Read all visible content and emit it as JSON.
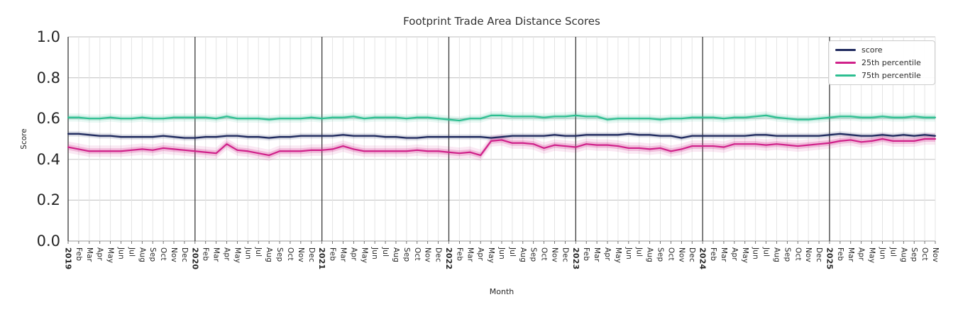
{
  "chart_data": {
    "type": "line",
    "title": "Footprint Trade Area Distance Scores",
    "xlabel": "Month",
    "ylabel": "Score",
    "ylim": [
      0.0,
      1.0
    ],
    "yticks": [
      0.0,
      0.2,
      0.4,
      0.6,
      0.8,
      1.0
    ],
    "grid": "on",
    "legend_position": "upper right",
    "x_labels": [
      "2019",
      "Feb",
      "Mar",
      "Apr",
      "May",
      "Jun",
      "Jul",
      "Aug",
      "Sep",
      "Oct",
      "Nov",
      "Dec",
      "2020",
      "Feb",
      "Mar",
      "Apr",
      "May",
      "Jun",
      "Jul",
      "Aug",
      "Sep",
      "Oct",
      "Nov",
      "Dec",
      "2021",
      "Feb",
      "Mar",
      "Apr",
      "May",
      "Jun",
      "Jul",
      "Aug",
      "Sep",
      "Oct",
      "Nov",
      "Dec",
      "2022",
      "Feb",
      "Mar",
      "Apr",
      "May",
      "Jun",
      "Jul",
      "Aug",
      "Sep",
      "Oct",
      "Nov",
      "Dec",
      "2023",
      "Feb",
      "Mar",
      "Apr",
      "May",
      "Jun",
      "Jul",
      "Aug",
      "Sep",
      "Oct",
      "Nov",
      "Dec",
      "2024",
      "Feb",
      "Mar",
      "Apr",
      "May",
      "Jun",
      "Jul",
      "Aug",
      "Sep",
      "Oct",
      "Nov",
      "Dec",
      "2025",
      "Feb",
      "Mar",
      "Apr",
      "May",
      "Jun",
      "Jul",
      "Aug",
      "Sep",
      "Oct",
      "Nov"
    ],
    "series": [
      {
        "name": "score",
        "color": "#1f2a5e",
        "band": 0.007,
        "values": [
          0.525,
          0.525,
          0.52,
          0.515,
          0.515,
          0.51,
          0.51,
          0.51,
          0.51,
          0.515,
          0.51,
          0.505,
          0.505,
          0.51,
          0.51,
          0.515,
          0.515,
          0.51,
          0.51,
          0.505,
          0.51,
          0.51,
          0.515,
          0.515,
          0.515,
          0.515,
          0.52,
          0.515,
          0.515,
          0.515,
          0.51,
          0.51,
          0.505,
          0.505,
          0.51,
          0.51,
          0.51,
          0.51,
          0.51,
          0.51,
          0.505,
          0.51,
          0.515,
          0.515,
          0.515,
          0.515,
          0.52,
          0.515,
          0.515,
          0.52,
          0.52,
          0.52,
          0.52,
          0.525,
          0.52,
          0.52,
          0.515,
          0.515,
          0.505,
          0.515,
          0.515,
          0.515,
          0.515,
          0.515,
          0.515,
          0.52,
          0.52,
          0.515,
          0.515,
          0.515,
          0.515,
          0.515,
          0.52,
          0.525,
          0.52,
          0.515,
          0.515,
          0.52,
          0.515,
          0.52,
          0.515,
          0.52,
          0.515
        ]
      },
      {
        "name": "25th percentile",
        "color": "#d0218a",
        "band": 0.014,
        "values": [
          0.46,
          0.45,
          0.44,
          0.44,
          0.44,
          0.44,
          0.445,
          0.45,
          0.445,
          0.455,
          0.45,
          0.445,
          0.44,
          0.435,
          0.43,
          0.475,
          0.445,
          0.44,
          0.43,
          0.42,
          0.44,
          0.44,
          0.44,
          0.445,
          0.445,
          0.45,
          0.465,
          0.45,
          0.44,
          0.44,
          0.44,
          0.44,
          0.44,
          0.445,
          0.44,
          0.44,
          0.435,
          0.43,
          0.435,
          0.42,
          0.49,
          0.495,
          0.48,
          0.48,
          0.475,
          0.455,
          0.47,
          0.465,
          0.46,
          0.475,
          0.47,
          0.47,
          0.465,
          0.455,
          0.455,
          0.45,
          0.455,
          0.44,
          0.45,
          0.465,
          0.465,
          0.465,
          0.46,
          0.475,
          0.475,
          0.475,
          0.47,
          0.475,
          0.47,
          0.465,
          0.47,
          0.475,
          0.48,
          0.49,
          0.495,
          0.485,
          0.49,
          0.5,
          0.49,
          0.49,
          0.49,
          0.5,
          0.5
        ]
      },
      {
        "name": "75th percentile",
        "color": "#2cbe90",
        "band": 0.01,
        "values": [
          0.605,
          0.605,
          0.6,
          0.6,
          0.605,
          0.6,
          0.6,
          0.605,
          0.6,
          0.6,
          0.605,
          0.605,
          0.605,
          0.605,
          0.6,
          0.61,
          0.6,
          0.6,
          0.6,
          0.595,
          0.6,
          0.6,
          0.6,
          0.605,
          0.6,
          0.605,
          0.605,
          0.61,
          0.6,
          0.605,
          0.605,
          0.605,
          0.6,
          0.605,
          0.605,
          0.6,
          0.595,
          0.59,
          0.6,
          0.6,
          0.615,
          0.615,
          0.61,
          0.61,
          0.61,
          0.605,
          0.61,
          0.61,
          0.615,
          0.61,
          0.61,
          0.595,
          0.6,
          0.6,
          0.6,
          0.6,
          0.595,
          0.6,
          0.6,
          0.605,
          0.605,
          0.605,
          0.6,
          0.605,
          0.605,
          0.61,
          0.615,
          0.605,
          0.6,
          0.595,
          0.595,
          0.6,
          0.605,
          0.61,
          0.61,
          0.605,
          0.605,
          0.61,
          0.605,
          0.605,
          0.61,
          0.605,
          0.605
        ]
      }
    ],
    "colors": {
      "year_gridline": "#3a3a3a",
      "month_gridline": "#e4e4e4",
      "horizontal_gridline": "#cccccc",
      "text": "#262626"
    }
  }
}
